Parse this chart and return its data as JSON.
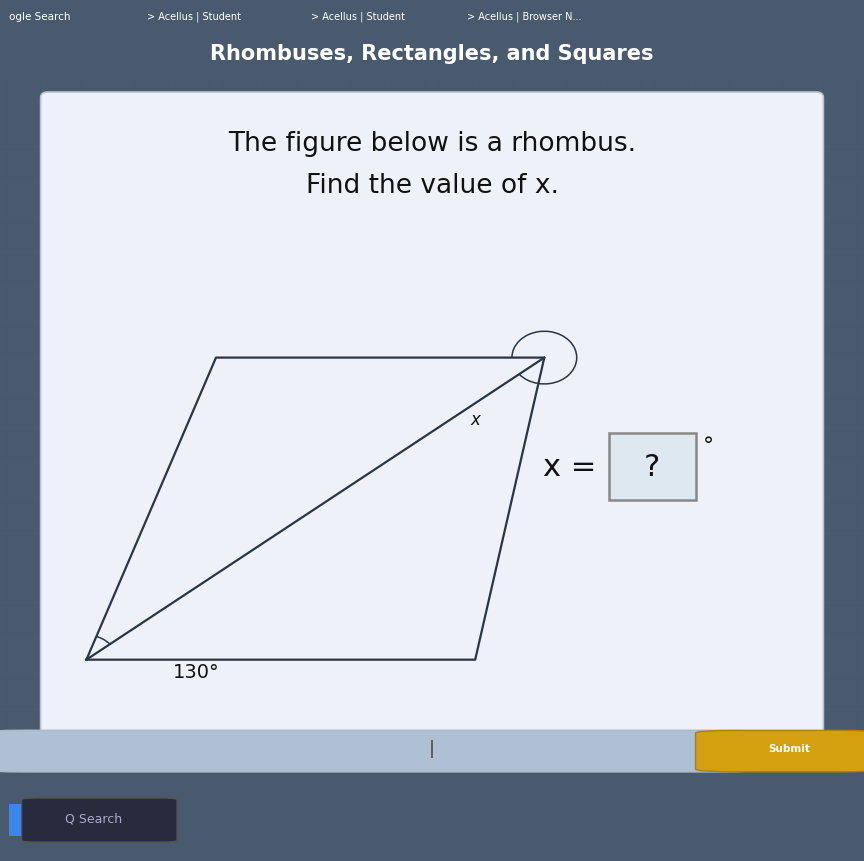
{
  "title": "Rhombuses, Rectangles, and Squares",
  "tab_bar_color": "#1e7fd4",
  "header_bar_color": "#2196d4",
  "browser_bg_color": "#4a5a6e",
  "card_text_line1": "The figure below is a rhombus.",
  "card_text_line2": "Find the value of x.",
  "angle_130_label": "130°",
  "angle_x_label": "x",
  "line_color": "#2a3545",
  "submit_btn_color": "#d4a010",
  "taskbar_color": "#2a1a3a",
  "bottom_bar_color": "#3d5070",
  "grid_color": "#5a6a7e",
  "card_bg": "#eef2f8",
  "BL": [
    0.1,
    0.17
  ],
  "TL": [
    0.25,
    0.6
  ],
  "TR": [
    0.63,
    0.6
  ],
  "BR": [
    0.55,
    0.17
  ]
}
